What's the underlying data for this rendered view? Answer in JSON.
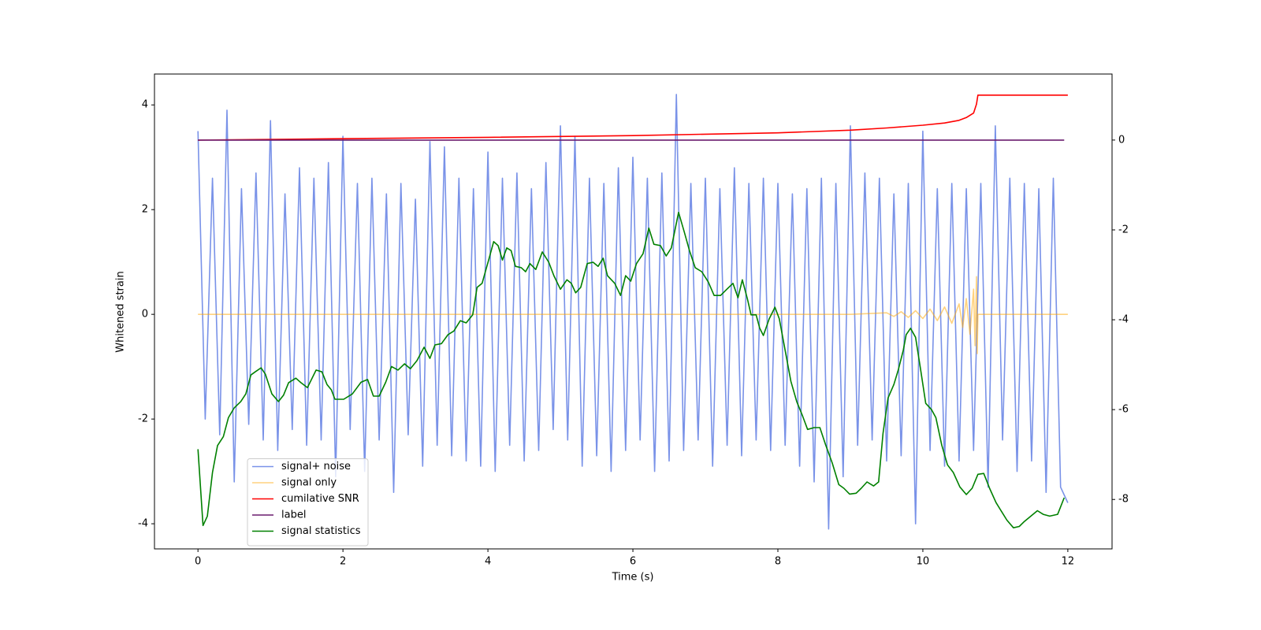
{
  "chart_data": {
    "type": "line",
    "xlabel": "Time (s)",
    "ylabel": "Whitened strain",
    "xlim": [
      -0.6,
      12.61
    ],
    "ylim": [
      -4.48,
      4.59
    ],
    "y2lim": [
      -9.1,
      1.47
    ],
    "xticks": [
      0,
      2,
      4,
      6,
      8,
      10,
      12
    ],
    "yticks": [
      -4,
      -2,
      0,
      2,
      4
    ],
    "y2ticks": [
      -8,
      -6,
      -4,
      -2,
      0
    ],
    "legend": "lower left",
    "grid": false,
    "series": [
      {
        "name": "signal+ noise",
        "color": "#6a86e6",
        "opacity": 0.9,
        "x": [
          0,
          0.1,
          0.2,
          0.3,
          0.4,
          0.5,
          0.6,
          0.7,
          0.8,
          0.9,
          1,
          1.1,
          1.2,
          1.3,
          1.4,
          1.5,
          1.6,
          1.7,
          1.8,
          1.9,
          2,
          2.1,
          2.2,
          2.3,
          2.4,
          2.5,
          2.6,
          2.7,
          2.8,
          2.9,
          3,
          3.1,
          3.2,
          3.3,
          3.4,
          3.5,
          3.6,
          3.7,
          3.8,
          3.9,
          4,
          4.1,
          4.2,
          4.3,
          4.4,
          4.5,
          4.6,
          4.7,
          4.8,
          4.9,
          5,
          5.1,
          5.2,
          5.3,
          5.4,
          5.5,
          5.6,
          5.7,
          5.8,
          5.9,
          6,
          6.1,
          6.2,
          6.3,
          6.4,
          6.5,
          6.6,
          6.7,
          6.8,
          6.9,
          7,
          7.1,
          7.2,
          7.3,
          7.4,
          7.5,
          7.6,
          7.7,
          7.8,
          7.9,
          8,
          8.1,
          8.2,
          8.3,
          8.4,
          8.5,
          8.6,
          8.7,
          8.8,
          8.9,
          9,
          9.1,
          9.2,
          9.3,
          9.4,
          9.5,
          9.6,
          9.7,
          9.8,
          9.9,
          10,
          10.1,
          10.2,
          10.3,
          10.4,
          10.5,
          10.6,
          10.7,
          10.8,
          10.9,
          11,
          11.1,
          11.2,
          11.3,
          11.4,
          11.5,
          11.6,
          11.7,
          11.8,
          11.9,
          12
        ],
        "values": [
          3.5,
          -2.0,
          2.6,
          -2.3,
          3.9,
          -3.2,
          2.4,
          -2.1,
          2.7,
          -2.4,
          3.7,
          -2.6,
          2.3,
          -2.2,
          2.8,
          -2.5,
          2.6,
          -2.4,
          2.9,
          -3.1,
          3.4,
          -2.2,
          2.5,
          -3.0,
          2.6,
          -2.4,
          2.3,
          -3.4,
          2.5,
          -2.3,
          2.2,
          -2.9,
          3.3,
          -2.5,
          3.2,
          -2.7,
          2.6,
          -2.8,
          2.4,
          -2.9,
          3.1,
          -3.0,
          2.6,
          -2.5,
          2.7,
          -2.8,
          2.4,
          -2.6,
          2.9,
          -2.2,
          3.6,
          -2.4,
          3.4,
          -2.9,
          2.6,
          -2.7,
          2.5,
          -3.0,
          2.8,
          -2.6,
          3.0,
          -2.4,
          2.6,
          -3.0,
          2.7,
          -2.8,
          4.2,
          -2.6,
          2.5,
          -2.4,
          2.6,
          -2.9,
          2.4,
          -2.5,
          2.8,
          -2.7,
          2.5,
          -2.4,
          2.6,
          -2.6,
          2.5,
          -2.5,
          2.3,
          -2.9,
          2.4,
          -3.2,
          2.6,
          -4.1,
          2.5,
          -3.1,
          3.6,
          -2.5,
          2.7,
          -2.4,
          2.6,
          -2.8,
          2.3,
          -2.7,
          2.5,
          -4.0,
          3.5,
          -2.6,
          2.4,
          -2.9,
          2.5,
          -2.8,
          2.4,
          -2.6,
          2.5,
          -3.3,
          3.6,
          -2.4,
          2.6,
          -3.0,
          2.5,
          -2.8,
          2.4,
          -3.4,
          2.6,
          -3.3,
          -3.6
        ]
      },
      {
        "name": "signal only",
        "color": "#ffa500",
        "opacity": 0.5,
        "x": [
          0,
          9.0,
          9.5,
          9.6,
          9.7,
          9.8,
          9.9,
          10.0,
          10.1,
          10.2,
          10.3,
          10.4,
          10.5,
          10.55,
          10.6,
          10.65,
          10.7,
          10.72,
          10.74,
          10.75,
          10.76,
          10.8,
          12
        ],
        "values": [
          0,
          0,
          0.03,
          -0.04,
          0.05,
          -0.06,
          0.07,
          -0.08,
          0.1,
          -0.12,
          0.14,
          -0.17,
          0.2,
          -0.25,
          0.3,
          -0.38,
          0.48,
          -0.6,
          0.72,
          -0.75,
          0,
          0,
          0
        ]
      },
      {
        "name": "cumilative SNR",
        "color": "#ff0000",
        "opacity": 1,
        "axis": "y2",
        "x": [
          0,
          2,
          4,
          6,
          7,
          8,
          8.5,
          9,
          9.5,
          10,
          10.3,
          10.5,
          10.6,
          10.7,
          10.74,
          10.76,
          12
        ],
        "values": [
          0,
          0.03,
          0.06,
          0.1,
          0.13,
          0.16,
          0.19,
          0.22,
          0.27,
          0.33,
          0.38,
          0.44,
          0.5,
          0.6,
          0.8,
          1.0,
          1.0
        ]
      },
      {
        "name": "label",
        "color": "#6a1b6e",
        "opacity": 1,
        "axis": "y2",
        "x": [
          0,
          11.95
        ],
        "values": [
          0,
          0
        ]
      },
      {
        "name": "signal statistics",
        "color": "#008000",
        "opacity": 1,
        "axis": "y2",
        "x": [
          0,
          0.07,
          0.13,
          0.2,
          0.27,
          0.35,
          0.42,
          0.5,
          0.59,
          0.66,
          0.73,
          0.79,
          0.87,
          0.93,
          1.02,
          1.11,
          1.18,
          1.25,
          1.35,
          1.42,
          1.51,
          1.63,
          1.71,
          1.78,
          1.84,
          1.89,
          2.01,
          2.13,
          2.25,
          2.34,
          2.42,
          2.5,
          2.59,
          2.67,
          2.76,
          2.85,
          2.93,
          3.02,
          3.12,
          3.2,
          3.27,
          3.36,
          3.45,
          3.53,
          3.62,
          3.7,
          3.79,
          3.85,
          3.92,
          4.01,
          4.08,
          4.14,
          4.2,
          4.26,
          4.32,
          4.38,
          4.46,
          4.52,
          4.58,
          4.66,
          4.75,
          4.84,
          4.91,
          5.0,
          5.09,
          5.15,
          5.21,
          5.28,
          5.37,
          5.45,
          5.52,
          5.59,
          5.65,
          5.75,
          5.83,
          5.9,
          5.97,
          6.05,
          6.14,
          6.22,
          6.29,
          6.38,
          6.46,
          6.53,
          6.63,
          6.71,
          6.78,
          6.86,
          6.95,
          7.04,
          7.12,
          7.21,
          7.29,
          7.38,
          7.45,
          7.51,
          7.58,
          7.63,
          7.7,
          7.75,
          7.8,
          7.88,
          7.96,
          8.02,
          8.1,
          8.18,
          8.26,
          8.34,
          8.41,
          8.5,
          8.58,
          8.66,
          8.75,
          8.84,
          8.91,
          8.99,
          9.08,
          9.15,
          9.23,
          9.32,
          9.39,
          9.45,
          9.52,
          9.6,
          9.66,
          9.73,
          9.77,
          9.83,
          9.9,
          9.97,
          10.04,
          10.12,
          10.18,
          10.26,
          10.34,
          10.42,
          10.51,
          10.6,
          10.68,
          10.76,
          10.84,
          10.92,
          11.01,
          11.09,
          11.16,
          11.25,
          11.33,
          11.4,
          11.49,
          11.58,
          11.66,
          11.75,
          11.86,
          11.95
        ],
        "values": [
          -6.88,
          -8.58,
          -8.37,
          -7.4,
          -6.8,
          -6.6,
          -6.18,
          -5.96,
          -5.82,
          -5.65,
          -5.23,
          -5.16,
          -5.07,
          -5.21,
          -5.65,
          -5.82,
          -5.68,
          -5.4,
          -5.3,
          -5.4,
          -5.51,
          -5.12,
          -5.16,
          -5.44,
          -5.56,
          -5.77,
          -5.77,
          -5.65,
          -5.39,
          -5.33,
          -5.7,
          -5.7,
          -5.39,
          -5.04,
          -5.12,
          -4.98,
          -5.09,
          -4.91,
          -4.61,
          -4.86,
          -4.56,
          -4.53,
          -4.33,
          -4.25,
          -4.02,
          -4.07,
          -3.89,
          -3.28,
          -3.19,
          -2.67,
          -2.26,
          -2.35,
          -2.67,
          -2.4,
          -2.46,
          -2.81,
          -2.84,
          -2.93,
          -2.75,
          -2.88,
          -2.49,
          -2.72,
          -3.02,
          -3.32,
          -3.11,
          -3.19,
          -3.4,
          -3.28,
          -2.75,
          -2.72,
          -2.81,
          -2.63,
          -3.02,
          -3.19,
          -3.46,
          -3.02,
          -3.14,
          -2.75,
          -2.53,
          -1.96,
          -2.32,
          -2.35,
          -2.58,
          -2.4,
          -1.61,
          -2.05,
          -2.46,
          -2.84,
          -2.93,
          -3.16,
          -3.46,
          -3.46,
          -3.33,
          -3.19,
          -3.51,
          -3.11,
          -3.54,
          -3.89,
          -3.89,
          -4.19,
          -4.35,
          -3.98,
          -3.72,
          -3.98,
          -4.68,
          -5.37,
          -5.82,
          -6.14,
          -6.44,
          -6.4,
          -6.4,
          -6.79,
          -7.19,
          -7.67,
          -7.75,
          -7.88,
          -7.86,
          -7.75,
          -7.61,
          -7.7,
          -7.61,
          -6.53,
          -5.74,
          -5.44,
          -5.12,
          -4.68,
          -4.33,
          -4.19,
          -4.39,
          -5.12,
          -5.86,
          -6.0,
          -6.18,
          -6.79,
          -7.23,
          -7.4,
          -7.72,
          -7.89,
          -7.75,
          -7.44,
          -7.42,
          -7.75,
          -8.07,
          -8.28,
          -8.46,
          -8.63,
          -8.6,
          -8.49,
          -8.37,
          -8.25,
          -8.33,
          -8.37,
          -8.33,
          -7.96
        ]
      }
    ]
  }
}
